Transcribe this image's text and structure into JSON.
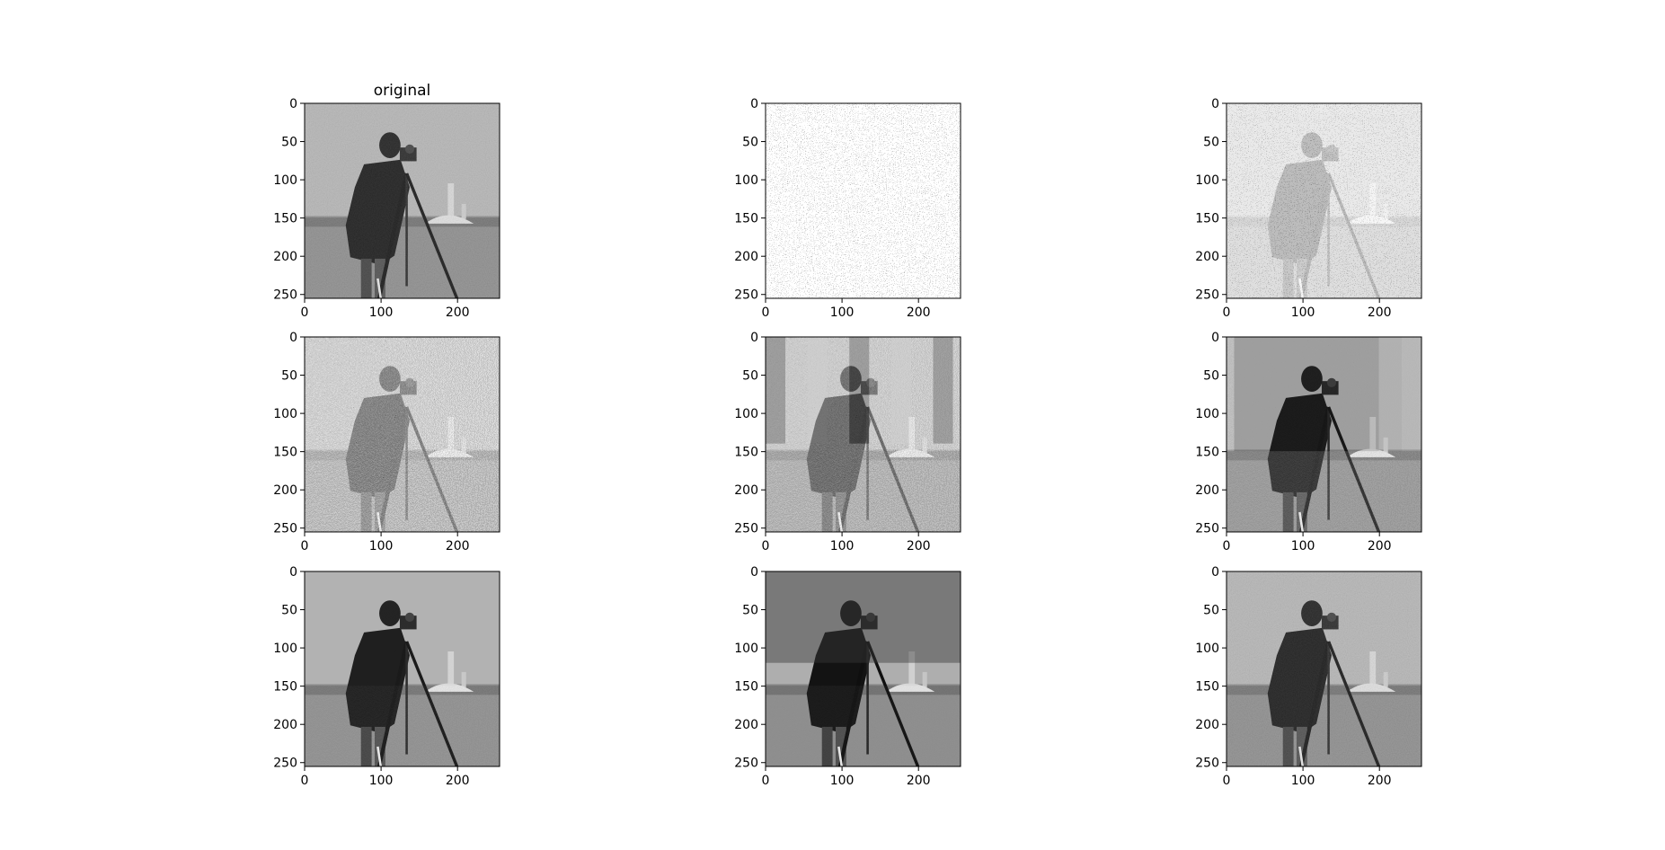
{
  "chart_data": {
    "type": "image-grid",
    "rows": 3,
    "cols": 3,
    "colormap": "gray",
    "panels": [
      {
        "title": "original",
        "content": "cameraman photograph"
      },
      {
        "title": "",
        "content": "random noise"
      },
      {
        "title": "",
        "content": "noise with faint figure"
      },
      {
        "title": "",
        "content": "noisy figure"
      },
      {
        "title": "",
        "content": "banded reconstruction"
      },
      {
        "title": "",
        "content": "partial reconstruction"
      },
      {
        "title": "",
        "content": "posterized reconstruction"
      },
      {
        "title": "",
        "content": "near-complete reconstruction"
      },
      {
        "title": "",
        "content": "cameraman photograph"
      }
    ],
    "axes": {
      "x_ticks": [
        0,
        100,
        200
      ],
      "y_ticks": [
        0,
        50,
        100,
        150,
        200,
        250
      ],
      "xlim": [
        0,
        255
      ],
      "ylim": [
        255,
        0
      ]
    }
  }
}
